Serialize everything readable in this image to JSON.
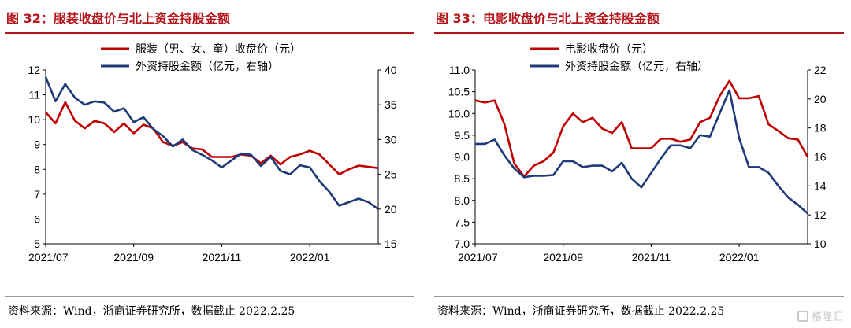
{
  "figures": [
    {
      "title": "图 32：服装收盘价与北上资金持股金额",
      "source": "资料来源：Wind，浙商证券研究所，数据截止 2022.2.25"
    },
    {
      "title": "图 33：电影收盘价与北上资金持股金额",
      "source": "资料来源：Wind，浙商证券研究所，数据截止 2022.2.25"
    }
  ],
  "watermark": "格隆汇",
  "chart_data": [
    {
      "type": "line",
      "title": "图 32：服装收盘价与北上资金持股金额",
      "x_tick_labels": [
        "2021/07",
        "2021/09",
        "2021/11",
        "2022/01"
      ],
      "x_tick_index": [
        0,
        9,
        18,
        27
      ],
      "y_left": {
        "lim": [
          5,
          12
        ],
        "ticks": [
          "5",
          "6",
          "7",
          "8",
          "9",
          "10",
          "11",
          "12"
        ]
      },
      "y_right": {
        "lim": [
          15,
          40
        ],
        "ticks": [
          "15",
          "20",
          "25",
          "30",
          "35",
          "40"
        ]
      },
      "legend_position": "top-center",
      "series": [
        {
          "name": "服装（男、女、童）收盘价（元）",
          "axis": "left",
          "color": "#c00000",
          "values": [
            10.3,
            9.85,
            10.7,
            9.95,
            9.65,
            9.95,
            9.85,
            9.5,
            9.85,
            9.45,
            9.8,
            9.65,
            9.1,
            8.95,
            9.1,
            8.85,
            8.8,
            8.5,
            8.5,
            8.5,
            8.6,
            8.55,
            8.25,
            8.55,
            8.2,
            8.5,
            8.6,
            8.75,
            8.6,
            8.2,
            7.8,
            8.0,
            8.15,
            8.1,
            8.05
          ]
        },
        {
          "name": "外资持股金额（亿元，右轴）",
          "axis": "right",
          "color": "#1f3a78",
          "values": [
            39.0,
            35.5,
            38.0,
            36.0,
            35.0,
            35.5,
            35.3,
            34.0,
            34.5,
            32.5,
            33.2,
            31.5,
            30.5,
            29.0,
            30.0,
            28.5,
            27.8,
            27.0,
            26.0,
            27.0,
            28.0,
            27.8,
            26.2,
            27.5,
            25.5,
            25.0,
            26.3,
            26.0,
            24.0,
            22.5,
            20.5,
            21.0,
            21.5,
            21.0,
            20.0
          ]
        }
      ]
    },
    {
      "type": "line",
      "title": "图 33：电影收盘价与北上资金持股金额",
      "x_tick_labels": [
        "2021/07",
        "2021/09",
        "2021/11",
        "2022/01"
      ],
      "x_tick_index": [
        0,
        9,
        18,
        27
      ],
      "y_left": {
        "lim": [
          7.0,
          11.0
        ],
        "ticks": [
          "7.0",
          "7.5",
          "8.0",
          "8.5",
          "9.0",
          "9.5",
          "10.0",
          "10.5",
          "11.0"
        ]
      },
      "y_right": {
        "lim": [
          10,
          22
        ],
        "ticks": [
          "10",
          "12",
          "14",
          "16",
          "18",
          "20",
          "22"
        ]
      },
      "legend_position": "top-center",
      "series": [
        {
          "name": "电影收盘价（元）",
          "axis": "left",
          "color": "#c00000",
          "values": [
            10.3,
            10.25,
            10.3,
            9.75,
            8.85,
            8.55,
            8.8,
            8.9,
            9.1,
            9.7,
            10.0,
            9.8,
            9.9,
            9.65,
            9.55,
            9.8,
            9.2,
            9.2,
            9.2,
            9.42,
            9.42,
            9.35,
            9.4,
            9.8,
            9.9,
            10.4,
            10.75,
            10.35,
            10.35,
            10.4,
            9.75,
            9.6,
            9.43,
            9.4,
            9.0
          ]
        },
        {
          "name": "外资持股金额（亿元，右轴）",
          "axis": "right",
          "color": "#1f3a78",
          "values": [
            16.9,
            16.9,
            17.2,
            16.1,
            15.2,
            14.6,
            14.7,
            14.7,
            14.75,
            15.7,
            15.7,
            15.3,
            15.4,
            15.4,
            15.0,
            15.6,
            14.5,
            13.9,
            14.9,
            15.9,
            16.8,
            16.8,
            16.6,
            17.5,
            17.4,
            19.0,
            20.6,
            17.3,
            15.3,
            15.3,
            14.9,
            14.0,
            13.2,
            12.7,
            12.1
          ]
        }
      ]
    }
  ]
}
